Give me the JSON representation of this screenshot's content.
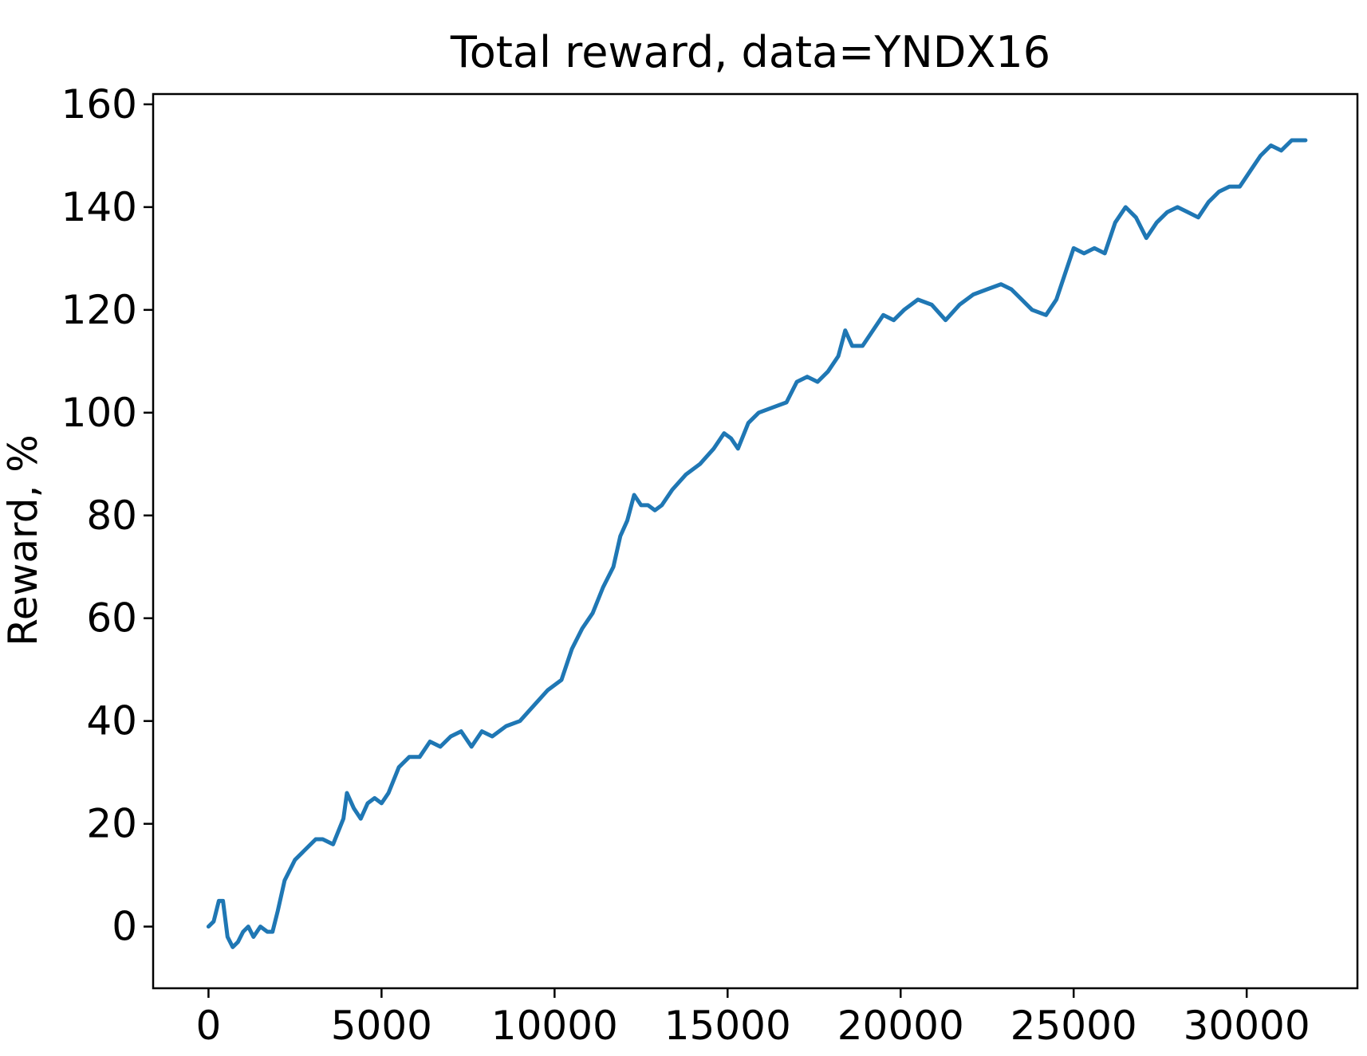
{
  "chart_data": {
    "type": "line",
    "title": "Total reward, data=YNDX16",
    "xlabel": "",
    "ylabel": "Reward, %",
    "xlim": [
      -1600,
      33200
    ],
    "ylim": [
      -12,
      162
    ],
    "xticks": [
      0,
      5000,
      10000,
      15000,
      20000,
      25000,
      30000
    ],
    "yticks": [
      0,
      20,
      40,
      60,
      80,
      100,
      120,
      140,
      160
    ],
    "grid": false,
    "legend": "none",
    "series": [
      {
        "color": "#1f77b4",
        "x": [
          0,
          150,
          300,
          420,
          550,
          700,
          850,
          1000,
          1150,
          1300,
          1500,
          1700,
          1850,
          2000,
          2200,
          2500,
          2800,
          3100,
          3300,
          3600,
          3900,
          4000,
          4200,
          4400,
          4600,
          4800,
          5000,
          5200,
          5500,
          5800,
          6100,
          6400,
          6700,
          7000,
          7300,
          7600,
          7900,
          8200,
          8600,
          9000,
          9400,
          9800,
          10200,
          10500,
          10800,
          11100,
          11400,
          11700,
          11900,
          12100,
          12300,
          12500,
          12700,
          12900,
          13100,
          13400,
          13800,
          14200,
          14600,
          14900,
          15100,
          15300,
          15600,
          15900,
          16300,
          16700,
          17000,
          17300,
          17600,
          17900,
          18200,
          18400,
          18600,
          18900,
          19200,
          19500,
          19800,
          20100,
          20500,
          20900,
          21300,
          21700,
          22100,
          22500,
          22900,
          23200,
          23500,
          23800,
          24200,
          24500,
          24800,
          25000,
          25300,
          25600,
          25900,
          26200,
          26500,
          26800,
          27100,
          27400,
          27700,
          28000,
          28300,
          28600,
          28900,
          29200,
          29500,
          29800,
          30100,
          30400,
          30700,
          31000,
          31300,
          31700
        ],
        "y": [
          0,
          1,
          5,
          5,
          -2,
          -4,
          -3,
          -1,
          0,
          -2,
          0,
          -1,
          -1,
          3,
          9,
          13,
          15,
          17,
          17,
          16,
          21,
          26,
          23,
          21,
          24,
          25,
          24,
          26,
          31,
          33,
          33,
          36,
          35,
          37,
          38,
          35,
          38,
          37,
          39,
          40,
          43,
          46,
          48,
          54,
          58,
          61,
          66,
          70,
          76,
          79,
          84,
          82,
          82,
          81,
          82,
          85,
          88,
          90,
          93,
          96,
          95,
          93,
          98,
          100,
          101,
          102,
          106,
          107,
          106,
          108,
          111,
          116,
          113,
          113,
          116,
          119,
          118,
          120,
          122,
          121,
          118,
          121,
          123,
          124,
          125,
          124,
          122,
          120,
          119,
          122,
          128,
          132,
          131,
          132,
          131,
          137,
          140,
          138,
          134,
          137,
          139,
          140,
          139,
          138,
          141,
          143,
          144,
          144,
          147,
          150,
          152,
          151,
          153,
          153
        ]
      }
    ]
  }
}
